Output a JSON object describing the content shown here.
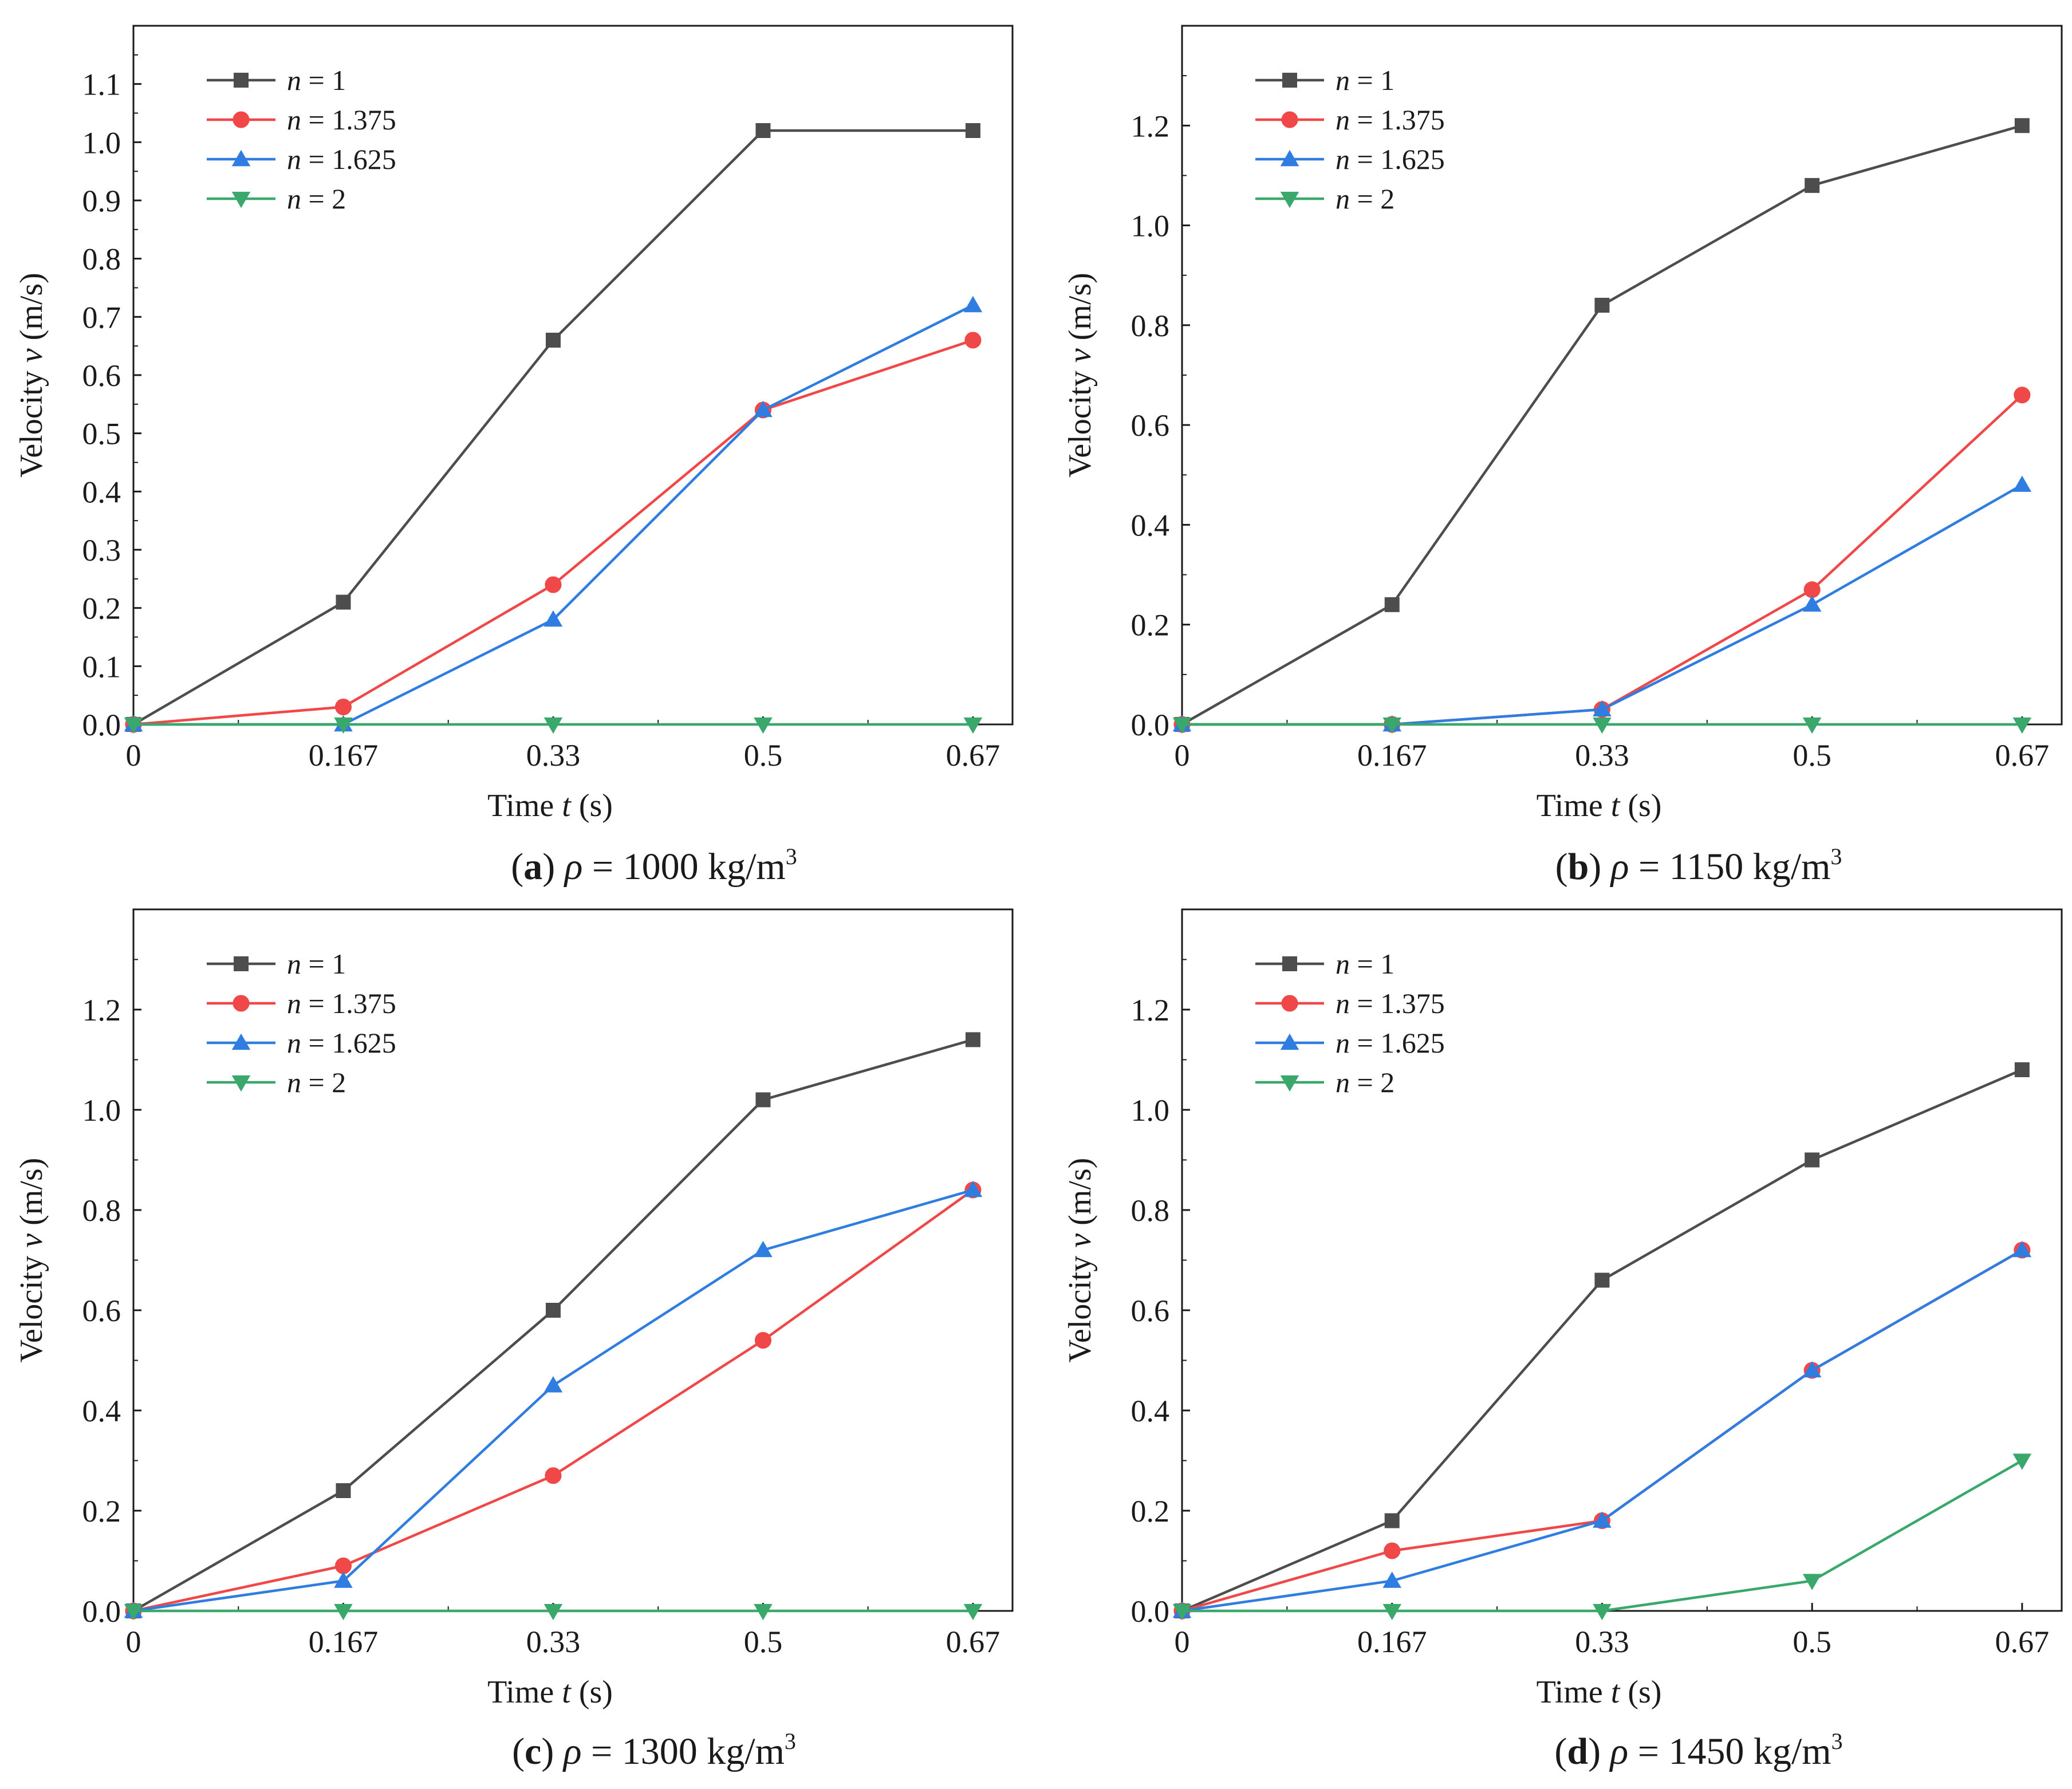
{
  "chart_data": [
    {
      "type": "line",
      "panel": "a",
      "caption": {
        "letter": "a",
        "symbol": "ρ",
        "text": " = 1000 kg/m",
        "sup": "3"
      },
      "xlabel": {
        "prefix": "Time ",
        "var": "t",
        "suffix": " (s)"
      },
      "ylabel": {
        "prefix": "Velocity ",
        "var": "v",
        "suffix": " (m/s)"
      },
      "categories": [
        "0",
        "0.167",
        "0.33",
        "0.5",
        "0.67"
      ],
      "ylim": [
        0,
        1.2
      ],
      "yticks": [
        0,
        0.1,
        0.2,
        0.3,
        0.4,
        0.5,
        0.6,
        0.7,
        0.8,
        0.9,
        1.0,
        1.1
      ],
      "ytick_labels": [
        "0.0",
        "0.1",
        "0.2",
        "0.3",
        "0.4",
        "0.5",
        "0.6",
        "0.7",
        "0.8",
        "0.9",
        "1.0",
        "1.1"
      ],
      "legend_position": "top-left",
      "series": [
        {
          "name": "n = 1",
          "legend_var": "n",
          "legend_value": " = 1",
          "color": "#4d4d4d",
          "marker": "square",
          "values": [
            0,
            0.21,
            0.66,
            1.02,
            1.02
          ]
        },
        {
          "name": "n = 1.375",
          "legend_var": "n",
          "legend_value": " = 1.375",
          "color": "#f04848",
          "marker": "circle",
          "values": [
            0,
            0.03,
            0.24,
            0.54,
            0.66
          ]
        },
        {
          "name": "n = 1.625",
          "legend_var": "n",
          "legend_value": " = 1.625",
          "color": "#2f7de1",
          "marker": "triangle-up",
          "values": [
            0,
            0,
            0.18,
            0.54,
            0.72
          ]
        },
        {
          "name": "n = 2",
          "legend_var": "n",
          "legend_value": " = 2",
          "color": "#3aa86a",
          "marker": "triangle-down",
          "values": [
            0,
            0,
            0,
            0,
            0
          ]
        }
      ]
    },
    {
      "type": "line",
      "panel": "b",
      "caption": {
        "letter": "b",
        "symbol": "ρ",
        "text": " = 1150 kg/m",
        "sup": "3"
      },
      "xlabel": {
        "prefix": "Time ",
        "var": "t",
        "suffix": " (s)"
      },
      "ylabel": {
        "prefix": "Velocity ",
        "var": "v",
        "suffix": " (m/s)"
      },
      "categories": [
        "0",
        "0.167",
        "0.33",
        "0.5",
        "0.67"
      ],
      "ylim": [
        0,
        1.4
      ],
      "yticks": [
        0,
        0.2,
        0.4,
        0.6,
        0.8,
        1.0,
        1.2
      ],
      "ytick_labels": [
        "0.0",
        "0.2",
        "0.4",
        "0.6",
        "0.8",
        "1.0",
        "1.2"
      ],
      "legend_position": "top-left",
      "series": [
        {
          "name": "n = 1",
          "legend_var": "n",
          "legend_value": " = 1",
          "color": "#4d4d4d",
          "marker": "square",
          "values": [
            0,
            0.24,
            0.84,
            1.08,
            1.2
          ]
        },
        {
          "name": "n = 1.375",
          "legend_var": "n",
          "legend_value": " = 1.375",
          "color": "#f04848",
          "marker": "circle",
          "values": [
            0,
            0,
            0.03,
            0.27,
            0.66
          ]
        },
        {
          "name": "n = 1.625",
          "legend_var": "n",
          "legend_value": " = 1.625",
          "color": "#2f7de1",
          "marker": "triangle-up",
          "values": [
            0,
            0,
            0.03,
            0.24,
            0.48
          ]
        },
        {
          "name": "n = 2",
          "legend_var": "n",
          "legend_value": " = 2",
          "color": "#3aa86a",
          "marker": "triangle-down",
          "values": [
            0,
            0,
            0,
            0,
            0
          ]
        }
      ]
    },
    {
      "type": "line",
      "panel": "c",
      "caption": {
        "letter": "c",
        "symbol": "ρ",
        "text": " = 1300 kg/m",
        "sup": "3"
      },
      "xlabel": {
        "prefix": "Time ",
        "var": "t",
        "suffix": " (s)"
      },
      "ylabel": {
        "prefix": "Velocity ",
        "var": "v",
        "suffix": " (m/s)"
      },
      "categories": [
        "0",
        "0.167",
        "0.33",
        "0.5",
        "0.67"
      ],
      "ylim": [
        0,
        1.4
      ],
      "yticks": [
        0,
        0.2,
        0.4,
        0.6,
        0.8,
        1.0,
        1.2
      ],
      "ytick_labels": [
        "0.0",
        "0.2",
        "0.4",
        "0.6",
        "0.8",
        "1.0",
        "1.2"
      ],
      "legend_position": "top-left",
      "series": [
        {
          "name": "n = 1",
          "legend_var": "n",
          "legend_value": " = 1",
          "color": "#4d4d4d",
          "marker": "square",
          "values": [
            0,
            0.24,
            0.6,
            1.02,
            1.14
          ]
        },
        {
          "name": "n = 1.375",
          "legend_var": "n",
          "legend_value": " = 1.375",
          "color": "#f04848",
          "marker": "circle",
          "values": [
            0,
            0.09,
            0.27,
            0.54,
            0.84
          ]
        },
        {
          "name": "n = 1.625",
          "legend_var": "n",
          "legend_value": " = 1.625",
          "color": "#2f7de1",
          "marker": "triangle-up",
          "values": [
            0,
            0.06,
            0.45,
            0.72,
            0.84
          ]
        },
        {
          "name": "n = 2",
          "legend_var": "n",
          "legend_value": " = 2",
          "color": "#3aa86a",
          "marker": "triangle-down",
          "values": [
            0,
            0,
            0,
            0,
            0
          ]
        }
      ]
    },
    {
      "type": "line",
      "panel": "d",
      "caption": {
        "letter": "d",
        "symbol": "ρ",
        "text": " = 1450 kg/m",
        "sup": "3"
      },
      "xlabel": {
        "prefix": "Time ",
        "var": "t",
        "suffix": " (s)"
      },
      "ylabel": {
        "prefix": "Velocity ",
        "var": "v",
        "suffix": " (m/s)"
      },
      "categories": [
        "0",
        "0.167",
        "0.33",
        "0.5",
        "0.67"
      ],
      "ylim": [
        0,
        1.4
      ],
      "yticks": [
        0,
        0.2,
        0.4,
        0.6,
        0.8,
        1.0,
        1.2
      ],
      "ytick_labels": [
        "0.0",
        "0.2",
        "0.4",
        "0.6",
        "0.8",
        "1.0",
        "1.2"
      ],
      "legend_position": "top-left",
      "series": [
        {
          "name": "n = 1",
          "legend_var": "n",
          "legend_value": " = 1",
          "color": "#4d4d4d",
          "marker": "square",
          "values": [
            0,
            0.18,
            0.66,
            0.9,
            1.08
          ]
        },
        {
          "name": "n = 1.375",
          "legend_var": "n",
          "legend_value": " = 1.375",
          "color": "#f04848",
          "marker": "circle",
          "values": [
            0,
            0.12,
            0.18,
            0.48,
            0.72
          ]
        },
        {
          "name": "n = 1.625",
          "legend_var": "n",
          "legend_value": " = 1.625",
          "color": "#2f7de1",
          "marker": "triangle-up",
          "values": [
            0,
            0.06,
            0.18,
            0.48,
            0.72
          ]
        },
        {
          "name": "n = 2",
          "legend_var": "n",
          "legend_value": " = 2",
          "color": "#3aa86a",
          "marker": "triangle-down",
          "values": [
            0,
            0,
            0,
            0.06,
            0.3
          ]
        }
      ]
    }
  ]
}
